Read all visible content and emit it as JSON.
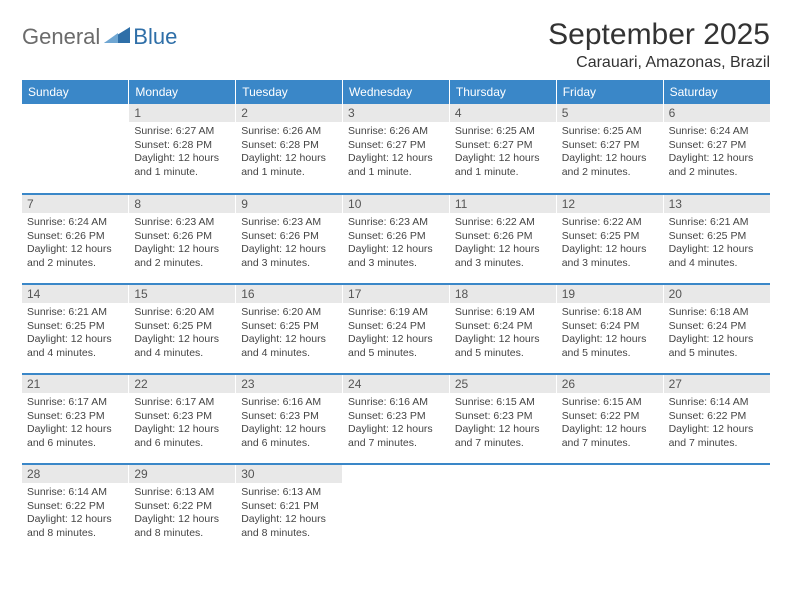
{
  "logo": {
    "text1": "General",
    "text2": "Blue"
  },
  "title": "September 2025",
  "location": "Carauari, Amazonas, Brazil",
  "colors": {
    "header_bg": "#3a87c8",
    "header_fg": "#ffffff",
    "daynum_bg": "#e8e8e8",
    "row_border": "#3a87c8",
    "logo_grey": "#6b6b6b",
    "logo_blue": "#2f6fa8"
  },
  "day_headers": [
    "Sunday",
    "Monday",
    "Tuesday",
    "Wednesday",
    "Thursday",
    "Friday",
    "Saturday"
  ],
  "weeks": [
    [
      null,
      {
        "n": "1",
        "sunrise": "6:27 AM",
        "sunset": "6:28 PM",
        "daylight": "12 hours and 1 minute."
      },
      {
        "n": "2",
        "sunrise": "6:26 AM",
        "sunset": "6:28 PM",
        "daylight": "12 hours and 1 minute."
      },
      {
        "n": "3",
        "sunrise": "6:26 AM",
        "sunset": "6:27 PM",
        "daylight": "12 hours and 1 minute."
      },
      {
        "n": "4",
        "sunrise": "6:25 AM",
        "sunset": "6:27 PM",
        "daylight": "12 hours and 1 minute."
      },
      {
        "n": "5",
        "sunrise": "6:25 AM",
        "sunset": "6:27 PM",
        "daylight": "12 hours and 2 minutes."
      },
      {
        "n": "6",
        "sunrise": "6:24 AM",
        "sunset": "6:27 PM",
        "daylight": "12 hours and 2 minutes."
      }
    ],
    [
      {
        "n": "7",
        "sunrise": "6:24 AM",
        "sunset": "6:26 PM",
        "daylight": "12 hours and 2 minutes."
      },
      {
        "n": "8",
        "sunrise": "6:23 AM",
        "sunset": "6:26 PM",
        "daylight": "12 hours and 2 minutes."
      },
      {
        "n": "9",
        "sunrise": "6:23 AM",
        "sunset": "6:26 PM",
        "daylight": "12 hours and 3 minutes."
      },
      {
        "n": "10",
        "sunrise": "6:23 AM",
        "sunset": "6:26 PM",
        "daylight": "12 hours and 3 minutes."
      },
      {
        "n": "11",
        "sunrise": "6:22 AM",
        "sunset": "6:26 PM",
        "daylight": "12 hours and 3 minutes."
      },
      {
        "n": "12",
        "sunrise": "6:22 AM",
        "sunset": "6:25 PM",
        "daylight": "12 hours and 3 minutes."
      },
      {
        "n": "13",
        "sunrise": "6:21 AM",
        "sunset": "6:25 PM",
        "daylight": "12 hours and 4 minutes."
      }
    ],
    [
      {
        "n": "14",
        "sunrise": "6:21 AM",
        "sunset": "6:25 PM",
        "daylight": "12 hours and 4 minutes."
      },
      {
        "n": "15",
        "sunrise": "6:20 AM",
        "sunset": "6:25 PM",
        "daylight": "12 hours and 4 minutes."
      },
      {
        "n": "16",
        "sunrise": "6:20 AM",
        "sunset": "6:25 PM",
        "daylight": "12 hours and 4 minutes."
      },
      {
        "n": "17",
        "sunrise": "6:19 AM",
        "sunset": "6:24 PM",
        "daylight": "12 hours and 5 minutes."
      },
      {
        "n": "18",
        "sunrise": "6:19 AM",
        "sunset": "6:24 PM",
        "daylight": "12 hours and 5 minutes."
      },
      {
        "n": "19",
        "sunrise": "6:18 AM",
        "sunset": "6:24 PM",
        "daylight": "12 hours and 5 minutes."
      },
      {
        "n": "20",
        "sunrise": "6:18 AM",
        "sunset": "6:24 PM",
        "daylight": "12 hours and 5 minutes."
      }
    ],
    [
      {
        "n": "21",
        "sunrise": "6:17 AM",
        "sunset": "6:23 PM",
        "daylight": "12 hours and 6 minutes."
      },
      {
        "n": "22",
        "sunrise": "6:17 AM",
        "sunset": "6:23 PM",
        "daylight": "12 hours and 6 minutes."
      },
      {
        "n": "23",
        "sunrise": "6:16 AM",
        "sunset": "6:23 PM",
        "daylight": "12 hours and 6 minutes."
      },
      {
        "n": "24",
        "sunrise": "6:16 AM",
        "sunset": "6:23 PM",
        "daylight": "12 hours and 7 minutes."
      },
      {
        "n": "25",
        "sunrise": "6:15 AM",
        "sunset": "6:23 PM",
        "daylight": "12 hours and 7 minutes."
      },
      {
        "n": "26",
        "sunrise": "6:15 AM",
        "sunset": "6:22 PM",
        "daylight": "12 hours and 7 minutes."
      },
      {
        "n": "27",
        "sunrise": "6:14 AM",
        "sunset": "6:22 PM",
        "daylight": "12 hours and 7 minutes."
      }
    ],
    [
      {
        "n": "28",
        "sunrise": "6:14 AM",
        "sunset": "6:22 PM",
        "daylight": "12 hours and 8 minutes."
      },
      {
        "n": "29",
        "sunrise": "6:13 AM",
        "sunset": "6:22 PM",
        "daylight": "12 hours and 8 minutes."
      },
      {
        "n": "30",
        "sunrise": "6:13 AM",
        "sunset": "6:21 PM",
        "daylight": "12 hours and 8 minutes."
      },
      null,
      null,
      null,
      null
    ]
  ],
  "labels": {
    "sunrise": "Sunrise:",
    "sunset": "Sunset:",
    "daylight": "Daylight:"
  }
}
